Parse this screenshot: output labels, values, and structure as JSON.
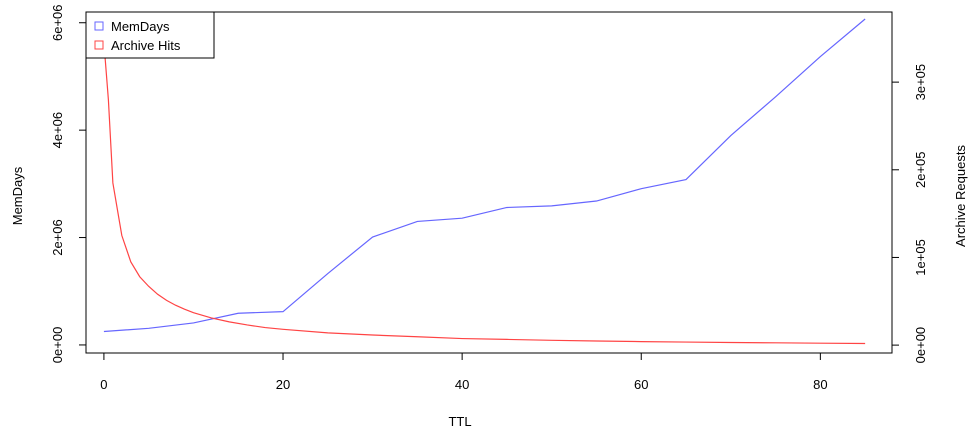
{
  "chart_data": {
    "type": "line",
    "xlabel": "TTL",
    "ylabel_left": "MemDays",
    "ylabel_right": "Archive Requests",
    "xlim": [
      -2,
      88
    ],
    "x_ticks": [
      0,
      20,
      40,
      60,
      80
    ],
    "x_tick_labels": [
      "0",
      "20",
      "40",
      "60",
      "80"
    ],
    "ylim_left": [
      -150000,
      6200000
    ],
    "y_left_ticks": [
      0,
      2000000,
      4000000,
      6000000
    ],
    "y_left_tick_labels": [
      "0e+00",
      "2e+06",
      "4e+06",
      "6e+06"
    ],
    "ylim_right": [
      -9000,
      380000
    ],
    "y_right_ticks": [
      0,
      100000,
      200000,
      300000
    ],
    "y_right_tick_labels": [
      "0e+00",
      "1e+05",
      "2e+05",
      "3e+05"
    ],
    "legend_position": "top-left",
    "series": [
      {
        "name": "MemDays",
        "axis": "left",
        "color": "#6666ff",
        "x": [
          0,
          5,
          10,
          15,
          20,
          25,
          30,
          35,
          40,
          45,
          50,
          55,
          60,
          65,
          70,
          75,
          80,
          85
        ],
        "values": [
          250000,
          310000,
          410000,
          590000,
          620000,
          1330000,
          2010000,
          2300000,
          2360000,
          2560000,
          2590000,
          2680000,
          2910000,
          3080000,
          3900000,
          4620000,
          5370000,
          6070000
        ]
      },
      {
        "name": "Archive Hits",
        "axis": "right",
        "color": "#ff4444",
        "x": [
          0,
          0.5,
          1,
          1.5,
          2,
          3,
          4,
          5,
          6,
          7,
          8,
          9,
          10,
          12,
          14,
          16,
          18,
          20,
          25,
          30,
          35,
          40,
          45,
          50,
          55,
          60,
          65,
          70,
          75,
          80,
          85
        ],
        "values": [
          345000,
          280000,
          185000,
          155000,
          125000,
          95000,
          78000,
          67000,
          58000,
          51000,
          45500,
          41000,
          37000,
          31000,
          26500,
          23000,
          20000,
          18000,
          14000,
          11500,
          9500,
          7500,
          6500,
          5500,
          4700,
          4000,
          3500,
          3000,
          2600,
          2200,
          1800
        ]
      }
    ]
  }
}
